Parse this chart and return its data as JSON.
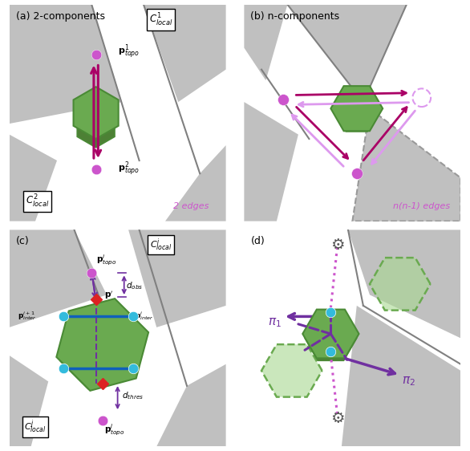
{
  "bg_color": "#ffffff",
  "gray_color": "#c0c0c0",
  "dark_gray": "#808080",
  "green_face": "#6aaa50",
  "green_edge": "#4a8a35",
  "green_face_light": "#a8d890",
  "green_face_3d": "#4d8035",
  "purple_arrow": "#aa0066",
  "pink_node": "#cc55cc",
  "pink_light": "#dd99ee",
  "cyan_node": "#33bbdd",
  "red_node": "#dd2222",
  "purple_dim": "#7030a0",
  "dashed_gray": "#999999",
  "title_a": "(a) 2-components",
  "title_b": "(b) n-components",
  "title_c": "(c)",
  "title_d": "(d)",
  "label_2edges": "2 edges",
  "label_nedges": "n(n-1) edges"
}
